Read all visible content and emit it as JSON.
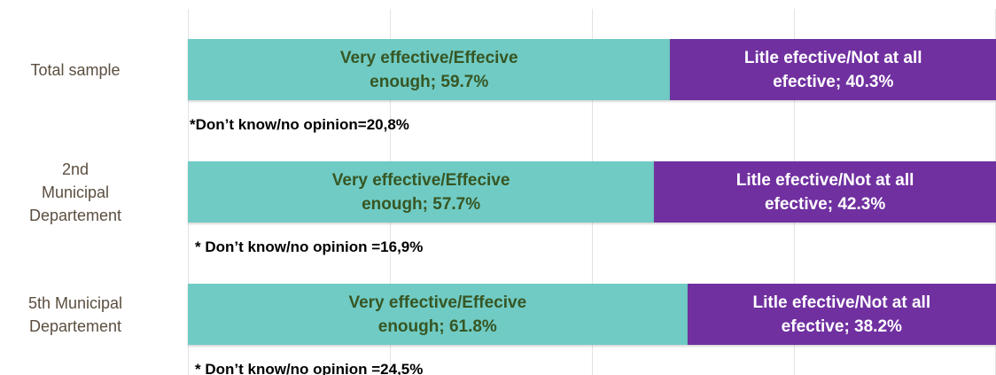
{
  "chart_data": {
    "type": "stacked-bar-horizontal",
    "categories": [
      "Total sample",
      "2nd Municipal Departement",
      "5th Municipal Departement"
    ],
    "series": [
      {
        "color": "#70cbc4",
        "values": [
          59.7,
          57.7,
          61.8
        ],
        "value_labels": [
          "Very effective/Effecive enough; 59.7%",
          "Very effective/Effecive enough; 57.7%",
          "Very effective/Effecive enough; 61.8%"
        ]
      },
      {
        "color": "#7030a0",
        "values": [
          40.3,
          42.3,
          38.2
        ],
        "value_labels": [
          "Litle efective/Not at all efective; 40.3%",
          "Litle efective/Not at all efective; 42.3%",
          "Litle efective/Not at all efective; 38.2%"
        ]
      }
    ],
    "annotations": [
      "*Don’t know/no opinion=20,8%",
      "* Don’t know/no opinion =16,9%",
      "* Don’t know/no opinion =24,5%"
    ],
    "xlim": [
      0,
      100
    ],
    "xticks": [
      0,
      25,
      50,
      75,
      100
    ],
    "grid": true
  }
}
